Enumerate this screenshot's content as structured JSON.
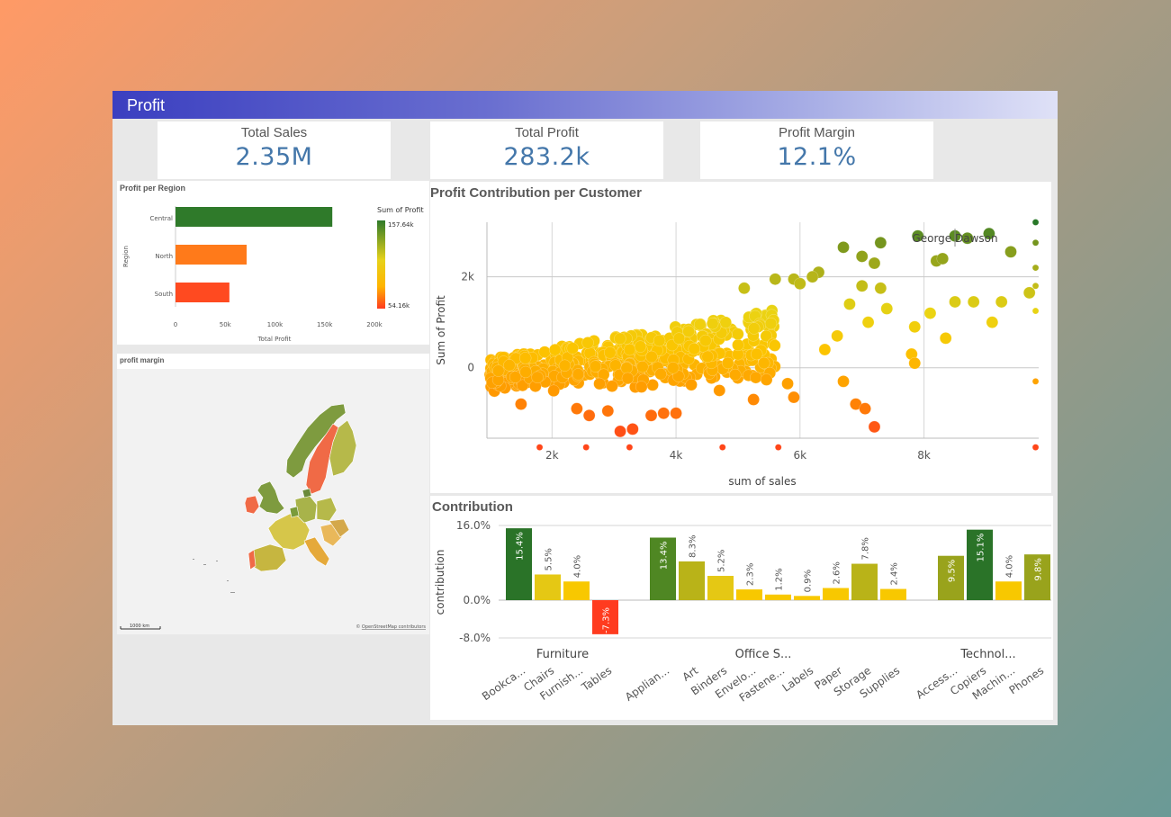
{
  "header": {
    "title": "Profit"
  },
  "kpis": [
    {
      "label": "Total Sales",
      "value": "2.35M"
    },
    {
      "label": "Total Profit",
      "value": "283.2k"
    },
    {
      "label": "Profit Margin",
      "value": "12.1%"
    }
  ],
  "region_chart": {
    "title": "Profit per Region",
    "chart_data": {
      "type": "bar",
      "orientation": "horizontal",
      "categories": [
        "Central",
        "North",
        "South"
      ],
      "values": [
        157640,
        71500,
        54160
      ],
      "colors": [
        "#2f7a2a",
        "#ff7a1a",
        "#ff4a20"
      ],
      "xlabel": "Total Profit",
      "ylabel": "Region",
      "xlim": [
        0,
        200000
      ],
      "x_ticks": [
        "0",
        "50k",
        "100k",
        "150k",
        "200k"
      ],
      "legend": {
        "title": "Sum of Profit",
        "max_label": "157.64k",
        "min_label": "54.16k"
      }
    }
  },
  "map_panel": {
    "title": "profit margin",
    "scale_label": "1000 km",
    "attribution_prefix": "© ",
    "attribution_link": "OpenStreetMap contributors"
  },
  "scatter": {
    "title": "Profit Contribution per Customer",
    "chart_data": {
      "type": "scatter",
      "xlabel": "sum of sales",
      "ylabel": "Sum of Profit",
      "x_ticks": [
        "2k",
        "4k",
        "6k",
        "8k"
      ],
      "y_ticks": [
        "2k",
        "0"
      ],
      "xlim": [
        950,
        9850
      ],
      "ylim": [
        -1550,
        3300
      ],
      "annotation": {
        "label": "George Dawson",
        "x": 8500,
        "y": 2900
      },
      "clusters": [
        {
          "name": "band",
          "x": [
            1000,
            5600
          ],
          "y_low_start": -300,
          "y_low_end": 0,
          "y_high_start": 200,
          "y_high_end": 1300
        }
      ],
      "points": [
        {
          "x": 9050,
          "y": 2950
        },
        {
          "x": 8500,
          "y": 2900
        },
        {
          "x": 8700,
          "y": 2850
        },
        {
          "x": 7900,
          "y": 2900
        },
        {
          "x": 7300,
          "y": 2750
        },
        {
          "x": 6700,
          "y": 2650
        },
        {
          "x": 7000,
          "y": 2450
        },
        {
          "x": 9800,
          "y": 2750
        },
        {
          "x": 9400,
          "y": 2550
        },
        {
          "x": 8200,
          "y": 2350
        },
        {
          "x": 8300,
          "y": 2400
        },
        {
          "x": 7200,
          "y": 2300
        },
        {
          "x": 6300,
          "y": 2100
        },
        {
          "x": 6200,
          "y": 2000
        },
        {
          "x": 5900,
          "y": 1950
        },
        {
          "x": 6000,
          "y": 1850
        },
        {
          "x": 5600,
          "y": 1950
        },
        {
          "x": 5100,
          "y": 1750
        },
        {
          "x": 7000,
          "y": 1800
        },
        {
          "x": 7300,
          "y": 1750
        },
        {
          "x": 9700,
          "y": 1650
        },
        {
          "x": 9250,
          "y": 1450
        },
        {
          "x": 8800,
          "y": 1450
        },
        {
          "x": 8500,
          "y": 1450
        },
        {
          "x": 8100,
          "y": 1200
        },
        {
          "x": 7850,
          "y": 900
        },
        {
          "x": 8350,
          "y": 650
        },
        {
          "x": 9100,
          "y": 1000
        },
        {
          "x": 7800,
          "y": 300
        },
        {
          "x": 7850,
          "y": 100
        },
        {
          "x": 6900,
          "y": -800
        },
        {
          "x": 7050,
          "y": -900
        },
        {
          "x": 6700,
          "y": -300
        },
        {
          "x": 7200,
          "y": -1300
        },
        {
          "x": 6800,
          "y": 1400
        },
        {
          "x": 7100,
          "y": 1000
        },
        {
          "x": 7400,
          "y": 1300
        },
        {
          "x": 6600,
          "y": 700
        },
        {
          "x": 6400,
          "y": 400
        },
        {
          "x": 3300,
          "y": -1350
        },
        {
          "x": 3100,
          "y": -1400
        },
        {
          "x": 3600,
          "y": -1050
        },
        {
          "x": 2600,
          "y": -1050
        },
        {
          "x": 2400,
          "y": -900
        },
        {
          "x": 2900,
          "y": -950
        },
        {
          "x": 3800,
          "y": -1000
        },
        {
          "x": 4000,
          "y": -1000
        },
        {
          "x": 1500,
          "y": -800
        },
        {
          "x": 5250,
          "y": -700
        },
        {
          "x": 5900,
          "y": -650
        },
        {
          "x": 4700,
          "y": -500
        },
        {
          "x": 5800,
          "y": -350
        },
        {
          "x": 9800,
          "y": 3200
        },
        {
          "x": 9800,
          "y": 2200
        },
        {
          "x": 9800,
          "y": 1800
        },
        {
          "x": 9800,
          "y": 1250
        },
        {
          "x": 9800,
          "y": -300
        },
        {
          "x": 9800,
          "y": -1750
        },
        {
          "x": 1800,
          "y": -1750
        },
        {
          "x": 2550,
          "y": -1750
        },
        {
          "x": 3250,
          "y": -1750
        },
        {
          "x": 4750,
          "y": -1750
        },
        {
          "x": 5650,
          "y": -1750
        }
      ]
    }
  },
  "contribution": {
    "title": "Contribution",
    "chart_data": {
      "type": "bar",
      "ylabel": "contribution",
      "y_ticks": [
        "16.0%",
        "0.0%",
        "-8.0%"
      ],
      "ylim": [
        -8,
        16
      ],
      "groups": [
        {
          "name": "Furniture",
          "categories": [
            "Bookca...",
            "Chairs",
            "Furnish...",
            "Tables"
          ],
          "values": [
            15.4,
            5.5,
            4.0,
            -7.3
          ],
          "labels": [
            "15.4%",
            "5.5%",
            "4.0%",
            "-7.3%"
          ]
        },
        {
          "name": "Office S...",
          "categories": [
            "Applian...",
            "Art",
            "Binders",
            "Envelo...",
            "Fastene...",
            "Labels",
            "Paper",
            "Storage",
            "Supplies"
          ],
          "values": [
            13.4,
            8.3,
            5.2,
            2.3,
            1.2,
            0.9,
            2.6,
            7.8,
            2.4
          ],
          "labels": [
            "13.4%",
            "8.3%",
            "5.2%",
            "2.3%",
            "1.2%",
            "0.9%",
            "2.6%",
            "7.8%",
            "2.4%"
          ]
        },
        {
          "name": "Technol...",
          "categories": [
            "Access...",
            "Copiers",
            "Machin...",
            "Phones"
          ],
          "values": [
            9.5,
            15.1,
            4.0,
            9.8
          ],
          "labels": [
            "9.5%",
            "15.1%",
            "4.0%",
            "9.8%"
          ]
        }
      ]
    }
  },
  "colors": {
    "green_dark": "#2a7328",
    "green": "#4f8723",
    "olive": "#99a31c",
    "olive_yellow": "#b9b318",
    "yellow": "#e5c814",
    "yellow_bright": "#f8c800",
    "red": "#ff3b1f"
  }
}
